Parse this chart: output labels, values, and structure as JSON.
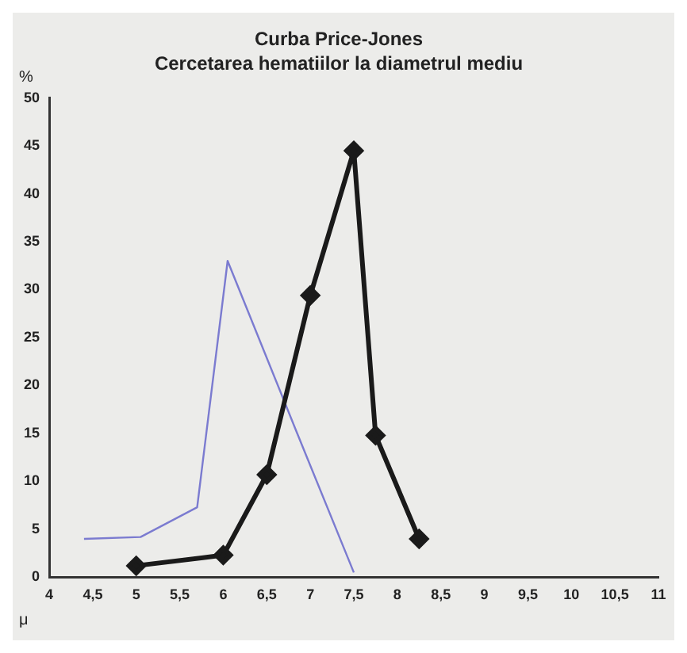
{
  "chart_data": {
    "type": "line",
    "title": "Curba Price-Jones",
    "subtitle": "Cercetarea hematiilor la diametrul mediu",
    "xlabel": "μ",
    "ylabel": "%",
    "series": [
      {
        "color": "#1a1a1a",
        "marker": "diamond",
        "x": [
          5,
          6,
          6.5,
          7,
          7.5,
          7.75,
          8.25
        ],
        "values": [
          1.2,
          2.3,
          10.7,
          29.4,
          44.5,
          14.8,
          4
        ]
      },
      {
        "color": "#7b7bd0",
        "marker": "none",
        "x": [
          4.4,
          5.05,
          5.7,
          6.05,
          6.85,
          7.5
        ],
        "values": [
          4,
          4.2,
          7.3,
          33,
          15,
          0.5
        ]
      }
    ],
    "xlim": [
      4,
      11
    ],
    "ylim": [
      0,
      50
    ],
    "xticks": [
      4,
      {
        "value": 4.5,
        "label": "4,5"
      },
      5,
      {
        "value": 5.5,
        "label": "5,5"
      },
      6,
      {
        "value": 6.5,
        "label": "6,5"
      },
      7,
      {
        "value": 7.5,
        "label": "7,5"
      },
      8,
      {
        "value": 8.5,
        "label": "8,5"
      },
      9,
      {
        "value": 9.5,
        "label": "9,5"
      },
      10,
      {
        "value": 10.5,
        "label": "10,5"
      },
      11
    ],
    "yticks": [
      0,
      5,
      10,
      15,
      20,
      25,
      30,
      35,
      40,
      45,
      50
    ],
    "grid": false,
    "legend": false
  }
}
